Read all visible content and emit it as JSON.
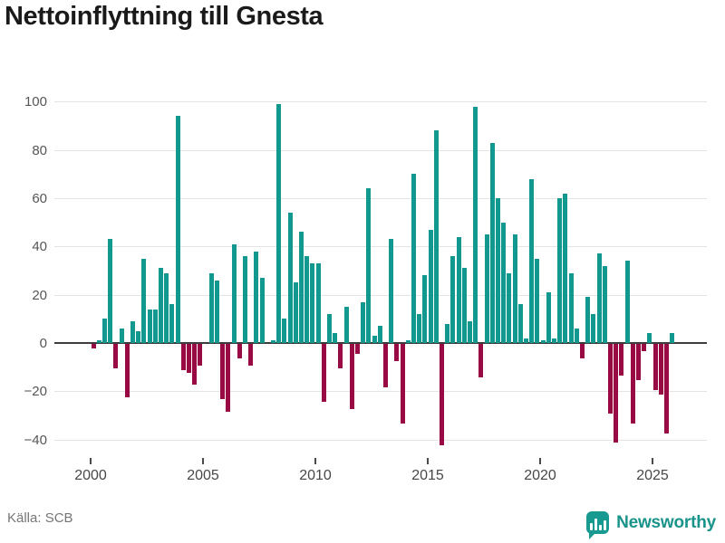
{
  "page": {
    "title": "Nettoinflyttning till Gnesta",
    "source": "Källa: SCB",
    "brand": "Newsworthy"
  },
  "colors": {
    "positive": "#12998f",
    "negative": "#990a45",
    "grid": "#e4e4e4",
    "zero_axis": "#3d3d3d",
    "brand_teal": "#189a90"
  },
  "chart_data": {
    "type": "bar",
    "title": "Nettoinflyttning till Gnesta",
    "xlabel": "",
    "ylabel": "",
    "frequency": "quarterly",
    "x_start": "2000-Q1",
    "x_end": "2025-Q4",
    "grid": "horizontal",
    "legend": "none",
    "ylim": [
      -45,
      103
    ],
    "ytick_values": [
      100,
      80,
      60,
      40,
      20,
      0,
      -20,
      -40
    ],
    "xtick_years": [
      2000,
      2005,
      2010,
      2015,
      2020,
      2025
    ],
    "series": [
      {
        "name": "Nettoinflyttning",
        "values": [
          -2,
          1,
          10,
          43,
          -10,
          6,
          -22,
          9,
          5,
          35,
          14,
          14,
          31,
          29,
          16,
          94,
          -11,
          -12,
          -17,
          -9,
          0,
          29,
          26,
          -23,
          -28,
          41,
          -6,
          36,
          -9,
          38,
          27,
          0,
          1,
          99,
          10,
          54,
          25,
          46,
          36,
          33,
          33,
          -24,
          12,
          4,
          -10,
          15,
          -27,
          -4,
          17,
          64,
          3,
          7,
          -18,
          43,
          -7,
          -33,
          1,
          70,
          12,
          28,
          47,
          88,
          -42,
          8,
          36,
          44,
          31,
          9,
          98,
          -14,
          45,
          83,
          60,
          50,
          29,
          45,
          16,
          2,
          68,
          35,
          1,
          21,
          2,
          60,
          62,
          29,
          6,
          -6,
          19,
          12,
          37,
          32,
          -29,
          -41,
          -13,
          34,
          -33,
          -15,
          -3,
          4,
          -19,
          -21,
          -37,
          4
        ]
      }
    ]
  }
}
